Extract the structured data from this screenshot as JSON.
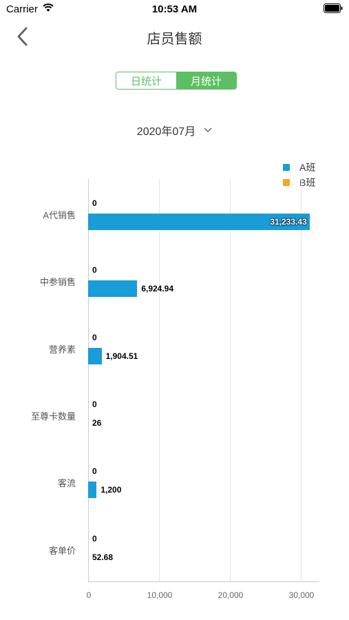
{
  "status": {
    "carrier": "Carrier",
    "time": "10:53 AM"
  },
  "nav": {
    "title": "店员售额"
  },
  "tabs": {
    "day": "日统计",
    "month": "月统计",
    "selected": "month"
  },
  "date": {
    "value": "2020年07月"
  },
  "legend": [
    {
      "label": "A班",
      "color": "#1a9cd8"
    },
    {
      "label": "B班",
      "color": "#f5a623"
    }
  ],
  "chart_data": {
    "type": "bar",
    "orientation": "horizontal",
    "categories": [
      "A代销售",
      "中参销售",
      "营养素",
      "至尊卡数量",
      "客流",
      "客单价"
    ],
    "series": [
      {
        "name": "A班",
        "color": "#1a9cd8",
        "values": [
          31233.43,
          6924.94,
          1904.51,
          26,
          1200,
          52.68
        ],
        "labels": [
          "31,233.43",
          "6,924.94",
          "1,904.51",
          "26",
          "1,200",
          "52.68"
        ]
      },
      {
        "name": "B班",
        "color": "#f5a623",
        "values": [
          0,
          0,
          0,
          0,
          0,
          0
        ],
        "labels": [
          "0",
          "0",
          "0",
          "0",
          "0",
          "0"
        ]
      }
    ],
    "xticks": [
      "0",
      "10,000",
      "20,000",
      "30,000"
    ],
    "xlim": [
      0,
      32500
    ],
    "grid": "vertical",
    "legend_position": "top-right"
  }
}
